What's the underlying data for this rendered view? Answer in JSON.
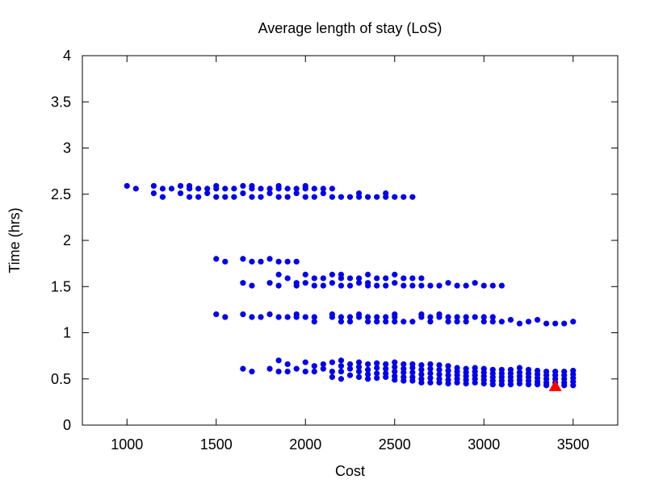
{
  "chart_data": {
    "type": "scatter",
    "title": "Average length of stay (LoS)",
    "xlabel": "Cost",
    "ylabel": "Time (hrs)",
    "xlim": [
      750,
      3750
    ],
    "ylim": [
      0,
      4
    ],
    "xticks": [
      1000,
      1500,
      2000,
      2500,
      3000,
      3500
    ],
    "yticks": [
      0,
      0.5,
      1,
      1.5,
      2,
      2.5,
      3,
      3.5,
      4
    ],
    "grid": false,
    "legend": "none",
    "colors": {
      "points": "#0000ee",
      "highlight": "#ff0000"
    },
    "series": [
      {
        "marker": "circle",
        "points": [
          [
            1000,
            2.59
          ],
          [
            1050,
            2.56
          ],
          [
            1150,
            2.59
          ],
          [
            1150,
            2.51
          ],
          [
            1200,
            2.56
          ],
          [
            1200,
            2.47
          ],
          [
            1250,
            2.56
          ],
          [
            1300,
            2.59
          ],
          [
            1300,
            2.51
          ],
          [
            1350,
            2.59
          ],
          [
            1350,
            2.56
          ],
          [
            1350,
            2.47
          ],
          [
            1400,
            2.56
          ],
          [
            1400,
            2.47
          ],
          [
            1450,
            2.56
          ],
          [
            1450,
            2.51
          ],
          [
            1500,
            2.59
          ],
          [
            1500,
            2.56
          ],
          [
            1500,
            2.47
          ],
          [
            1550,
            2.56
          ],
          [
            1550,
            2.47
          ],
          [
            1600,
            2.56
          ],
          [
            1600,
            2.47
          ],
          [
            1650,
            2.59
          ],
          [
            1650,
            2.51
          ],
          [
            1700,
            2.59
          ],
          [
            1700,
            2.56
          ],
          [
            1700,
            2.47
          ],
          [
            1750,
            2.56
          ],
          [
            1750,
            2.47
          ],
          [
            1800,
            2.56
          ],
          [
            1800,
            2.51
          ],
          [
            1850,
            2.59
          ],
          [
            1850,
            2.56
          ],
          [
            1850,
            2.47
          ],
          [
            1900,
            2.56
          ],
          [
            1900,
            2.47
          ],
          [
            1950,
            2.56
          ],
          [
            1950,
            2.51
          ],
          [
            2000,
            2.59
          ],
          [
            2000,
            2.56
          ],
          [
            2000,
            2.47
          ],
          [
            2050,
            2.56
          ],
          [
            2050,
            2.47
          ],
          [
            2100,
            2.56
          ],
          [
            2100,
            2.51
          ],
          [
            2150,
            2.56
          ],
          [
            2150,
            2.47
          ],
          [
            2200,
            2.47
          ],
          [
            2250,
            2.47
          ],
          [
            2300,
            2.51
          ],
          [
            2300,
            2.47
          ],
          [
            2350,
            2.47
          ],
          [
            2400,
            2.47
          ],
          [
            2450,
            2.51
          ],
          [
            2450,
            2.47
          ],
          [
            2500,
            2.47
          ],
          [
            2550,
            2.47
          ],
          [
            2600,
            2.47
          ],
          [
            1500,
            1.8
          ],
          [
            1550,
            1.77
          ],
          [
            1650,
            1.8
          ],
          [
            1700,
            1.77
          ],
          [
            1750,
            1.77
          ],
          [
            1800,
            1.8
          ],
          [
            1850,
            1.77
          ],
          [
            1900,
            1.77
          ],
          [
            1950,
            1.77
          ],
          [
            1650,
            1.54
          ],
          [
            1700,
            1.51
          ],
          [
            1800,
            1.54
          ],
          [
            1850,
            1.63
          ],
          [
            1850,
            1.51
          ],
          [
            1900,
            1.59
          ],
          [
            1950,
            1.54
          ],
          [
            1950,
            1.51
          ],
          [
            2000,
            1.63
          ],
          [
            2000,
            1.54
          ],
          [
            2050,
            1.59
          ],
          [
            2050,
            1.51
          ],
          [
            2100,
            1.59
          ],
          [
            2100,
            1.51
          ],
          [
            2150,
            1.63
          ],
          [
            2150,
            1.54
          ],
          [
            2200,
            1.63
          ],
          [
            2200,
            1.59
          ],
          [
            2200,
            1.51
          ],
          [
            2250,
            1.59
          ],
          [
            2250,
            1.51
          ],
          [
            2300,
            1.59
          ],
          [
            2300,
            1.54
          ],
          [
            2350,
            1.63
          ],
          [
            2350,
            1.54
          ],
          [
            2350,
            1.51
          ],
          [
            2400,
            1.59
          ],
          [
            2400,
            1.51
          ],
          [
            2450,
            1.59
          ],
          [
            2450,
            1.51
          ],
          [
            2500,
            1.63
          ],
          [
            2500,
            1.54
          ],
          [
            2550,
            1.59
          ],
          [
            2550,
            1.51
          ],
          [
            2600,
            1.59
          ],
          [
            2600,
            1.51
          ],
          [
            2650,
            1.59
          ],
          [
            2650,
            1.51
          ],
          [
            2700,
            1.51
          ],
          [
            2750,
            1.51
          ],
          [
            2800,
            1.54
          ],
          [
            2850,
            1.51
          ],
          [
            2900,
            1.51
          ],
          [
            2950,
            1.54
          ],
          [
            3000,
            1.51
          ],
          [
            3050,
            1.51
          ],
          [
            3100,
            1.51
          ],
          [
            1500,
            1.2
          ],
          [
            1550,
            1.17
          ],
          [
            1650,
            1.2
          ],
          [
            1700,
            1.17
          ],
          [
            1750,
            1.17
          ],
          [
            1800,
            1.2
          ],
          [
            1850,
            1.17
          ],
          [
            1900,
            1.17
          ],
          [
            1950,
            1.2
          ],
          [
            1950,
            1.17
          ],
          [
            2000,
            1.17
          ],
          [
            2050,
            1.17
          ],
          [
            2050,
            1.12
          ],
          [
            2150,
            1.2
          ],
          [
            2150,
            1.17
          ],
          [
            2200,
            1.17
          ],
          [
            2200,
            1.12
          ],
          [
            2250,
            1.17
          ],
          [
            2250,
            1.12
          ],
          [
            2300,
            1.2
          ],
          [
            2300,
            1.17
          ],
          [
            2350,
            1.17
          ],
          [
            2350,
            1.12
          ],
          [
            2400,
            1.17
          ],
          [
            2400,
            1.12
          ],
          [
            2450,
            1.17
          ],
          [
            2450,
            1.12
          ],
          [
            2500,
            1.2
          ],
          [
            2500,
            1.17
          ],
          [
            2500,
            1.12
          ],
          [
            2550,
            1.12
          ],
          [
            2600,
            1.12
          ],
          [
            2650,
            1.2
          ],
          [
            2650,
            1.17
          ],
          [
            2700,
            1.17
          ],
          [
            2700,
            1.12
          ],
          [
            2750,
            1.2
          ],
          [
            2750,
            1.17
          ],
          [
            2800,
            1.17
          ],
          [
            2800,
            1.12
          ],
          [
            2850,
            1.17
          ],
          [
            2850,
            1.12
          ],
          [
            2900,
            1.17
          ],
          [
            2900,
            1.12
          ],
          [
            2950,
            1.17
          ],
          [
            3000,
            1.17
          ],
          [
            3000,
            1.12
          ],
          [
            3050,
            1.17
          ],
          [
            3050,
            1.12
          ],
          [
            3100,
            1.12
          ],
          [
            3150,
            1.14
          ],
          [
            3200,
            1.1
          ],
          [
            3250,
            1.12
          ],
          [
            3300,
            1.14
          ],
          [
            3350,
            1.1
          ],
          [
            3400,
            1.1
          ],
          [
            3450,
            1.1
          ],
          [
            3500,
            1.12
          ],
          [
            1650,
            0.61
          ],
          [
            1700,
            0.58
          ],
          [
            1800,
            0.61
          ],
          [
            1850,
            0.7
          ],
          [
            1850,
            0.58
          ],
          [
            1900,
            0.66
          ],
          [
            1900,
            0.58
          ],
          [
            1950,
            0.61
          ],
          [
            2000,
            0.68
          ],
          [
            2000,
            0.58
          ],
          [
            2050,
            0.64
          ],
          [
            2050,
            0.58
          ],
          [
            2100,
            0.66
          ],
          [
            2100,
            0.61
          ],
          [
            2150,
            0.68
          ],
          [
            2150,
            0.58
          ],
          [
            2150,
            0.52
          ],
          [
            2200,
            0.7
          ],
          [
            2200,
            0.64
          ],
          [
            2200,
            0.58
          ],
          [
            2200,
            0.5
          ],
          [
            2250,
            0.66
          ],
          [
            2250,
            0.61
          ],
          [
            2250,
            0.54
          ],
          [
            2300,
            0.68
          ],
          [
            2300,
            0.63
          ],
          [
            2300,
            0.58
          ],
          [
            2300,
            0.52
          ],
          [
            2350,
            0.66
          ],
          [
            2350,
            0.6
          ],
          [
            2350,
            0.55
          ],
          [
            2350,
            0.5
          ],
          [
            2400,
            0.67
          ],
          [
            2400,
            0.62
          ],
          [
            2400,
            0.56
          ],
          [
            2400,
            0.51
          ],
          [
            2450,
            0.66
          ],
          [
            2450,
            0.61
          ],
          [
            2450,
            0.56
          ],
          [
            2450,
            0.52
          ],
          [
            2500,
            0.68
          ],
          [
            2500,
            0.63
          ],
          [
            2500,
            0.58
          ],
          [
            2500,
            0.53
          ],
          [
            2500,
            0.49
          ],
          [
            2550,
            0.66
          ],
          [
            2550,
            0.61
          ],
          [
            2550,
            0.57
          ],
          [
            2550,
            0.52
          ],
          [
            2550,
            0.48
          ],
          [
            2600,
            0.66
          ],
          [
            2600,
            0.62
          ],
          [
            2600,
            0.57
          ],
          [
            2600,
            0.52
          ],
          [
            2600,
            0.48
          ],
          [
            2650,
            0.65
          ],
          [
            2650,
            0.6
          ],
          [
            2650,
            0.55
          ],
          [
            2650,
            0.5
          ],
          [
            2650,
            0.46
          ],
          [
            2700,
            0.66
          ],
          [
            2700,
            0.61
          ],
          [
            2700,
            0.56
          ],
          [
            2700,
            0.51
          ],
          [
            2700,
            0.46
          ],
          [
            2750,
            0.65
          ],
          [
            2750,
            0.6
          ],
          [
            2750,
            0.55
          ],
          [
            2750,
            0.5
          ],
          [
            2750,
            0.46
          ],
          [
            2800,
            0.64
          ],
          [
            2800,
            0.59
          ],
          [
            2800,
            0.54
          ],
          [
            2800,
            0.49
          ],
          [
            2800,
            0.45
          ],
          [
            2850,
            0.62
          ],
          [
            2850,
            0.58
          ],
          [
            2850,
            0.54
          ],
          [
            2850,
            0.5
          ],
          [
            2850,
            0.46
          ],
          [
            2900,
            0.61
          ],
          [
            2900,
            0.57
          ],
          [
            2900,
            0.53
          ],
          [
            2900,
            0.49
          ],
          [
            2900,
            0.45
          ],
          [
            2950,
            0.62
          ],
          [
            2950,
            0.58
          ],
          [
            2950,
            0.54
          ],
          [
            2950,
            0.5
          ],
          [
            2950,
            0.46
          ],
          [
            3000,
            0.61
          ],
          [
            3000,
            0.57
          ],
          [
            3000,
            0.53
          ],
          [
            3000,
            0.49
          ],
          [
            3000,
            0.45
          ],
          [
            3050,
            0.6
          ],
          [
            3050,
            0.56
          ],
          [
            3050,
            0.52
          ],
          [
            3050,
            0.48
          ],
          [
            3050,
            0.44
          ],
          [
            3100,
            0.6
          ],
          [
            3100,
            0.56
          ],
          [
            3100,
            0.52
          ],
          [
            3100,
            0.48
          ],
          [
            3100,
            0.44
          ],
          [
            3150,
            0.6
          ],
          [
            3150,
            0.56
          ],
          [
            3150,
            0.52
          ],
          [
            3150,
            0.48
          ],
          [
            3150,
            0.44
          ],
          [
            3200,
            0.62
          ],
          [
            3200,
            0.57
          ],
          [
            3200,
            0.53
          ],
          [
            3200,
            0.49
          ],
          [
            3200,
            0.45
          ],
          [
            3250,
            0.6
          ],
          [
            3250,
            0.56
          ],
          [
            3250,
            0.52
          ],
          [
            3250,
            0.48
          ],
          [
            3250,
            0.44
          ],
          [
            3300,
            0.59
          ],
          [
            3300,
            0.55
          ],
          [
            3300,
            0.51
          ],
          [
            3300,
            0.47
          ],
          [
            3300,
            0.44
          ],
          [
            3350,
            0.58
          ],
          [
            3350,
            0.54
          ],
          [
            3350,
            0.5
          ],
          [
            3350,
            0.46
          ],
          [
            3350,
            0.43
          ],
          [
            3400,
            0.58
          ],
          [
            3400,
            0.54
          ],
          [
            3400,
            0.5
          ],
          [
            3400,
            0.46
          ],
          [
            3450,
            0.58
          ],
          [
            3450,
            0.54
          ],
          [
            3450,
            0.5
          ],
          [
            3450,
            0.46
          ],
          [
            3450,
            0.43
          ],
          [
            3500,
            0.59
          ],
          [
            3500,
            0.55
          ],
          [
            3500,
            0.51
          ],
          [
            3500,
            0.47
          ],
          [
            3500,
            0.43
          ]
        ]
      },
      {
        "marker": "triangle",
        "points": [
          [
            3400,
            0.42
          ]
        ]
      }
    ]
  }
}
